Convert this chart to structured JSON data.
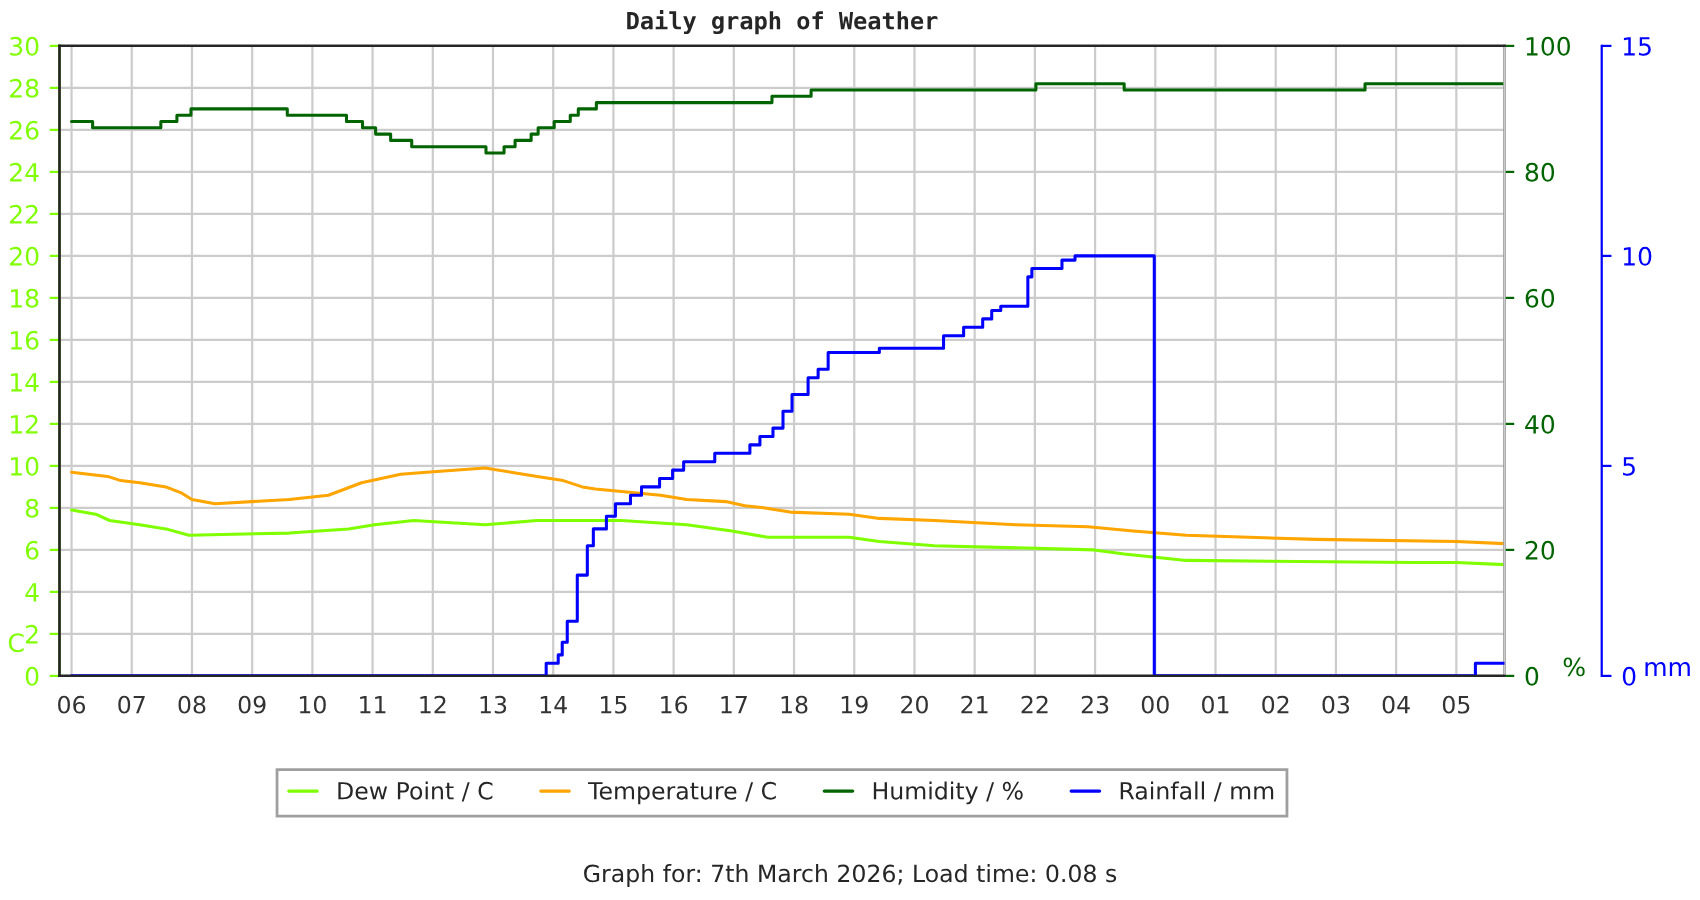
{
  "chart_data": {
    "type": "line",
    "title": "Daily graph of Weather",
    "ylabel": "C",
    "y2label": "%",
    "y3label": "mm",
    "xlim": [
      "2026-03-07T05:48",
      "2026-03-08T05:48"
    ],
    "xticks": [
      {
        "value": "2026-03-07T06:00",
        "label": "06"
      },
      {
        "value": "2026-03-07T07:00",
        "label": "07"
      },
      {
        "value": "2026-03-07T08:00",
        "label": "08"
      },
      {
        "value": "2026-03-07T09:00",
        "label": "09"
      },
      {
        "value": "2026-03-07T10:00",
        "label": "10"
      },
      {
        "value": "2026-03-07T11:00",
        "label": "11"
      },
      {
        "value": "2026-03-07T12:00",
        "label": "12"
      },
      {
        "value": "2026-03-07T13:00",
        "label": "13"
      },
      {
        "value": "2026-03-07T14:00",
        "label": "14"
      },
      {
        "value": "2026-03-07T15:00",
        "label": "15"
      },
      {
        "value": "2026-03-07T16:00",
        "label": "16"
      },
      {
        "value": "2026-03-07T17:00",
        "label": "17"
      },
      {
        "value": "2026-03-07T18:00",
        "label": "18"
      },
      {
        "value": "2026-03-07T19:00",
        "label": "19"
      },
      {
        "value": "2026-03-07T20:00",
        "label": "20"
      },
      {
        "value": "2026-03-07T21:00",
        "label": "21"
      },
      {
        "value": "2026-03-07T22:00",
        "label": "22"
      },
      {
        "value": "2026-03-07T23:00",
        "label": "23"
      },
      {
        "value": "2026-03-08T00:00",
        "label": "00"
      },
      {
        "value": "2026-03-08T01:00",
        "label": "01"
      },
      {
        "value": "2026-03-08T02:00",
        "label": "02"
      },
      {
        "value": "2026-03-08T03:00",
        "label": "03"
      },
      {
        "value": "2026-03-08T04:00",
        "label": "04"
      },
      {
        "value": "2026-03-08T05:00",
        "label": "05"
      }
    ],
    "ylim": [
      0,
      30
    ],
    "yticks": [
      0,
      2,
      4,
      6,
      8,
      10,
      12,
      14,
      16,
      18,
      20,
      22,
      24,
      26,
      28,
      30
    ],
    "y2lim": [
      0,
      100
    ],
    "y2ticks": [
      0,
      20,
      40,
      60,
      80,
      100
    ],
    "y3lim": [
      0,
      15
    ],
    "y3ticks": [
      0,
      5,
      10,
      15
    ],
    "grid": true,
    "legend": "bottom",
    "series": [
      {
        "name": "Dew Point / C",
        "color": "#7fff00",
        "x": [
          "2026-03-07T06:00",
          "2026-03-07T06:24",
          "2026-03-07T06:38",
          "2026-03-07T07:08",
          "2026-03-07T07:34",
          "2026-03-07T07:57",
          "2026-03-07T09:37",
          "2026-03-07T10:36",
          "2026-03-07T11:02",
          "2026-03-07T11:41",
          "2026-03-07T12:52",
          "2026-03-07T13:44",
          "2026-03-07T15:08",
          "2026-03-07T16:13",
          "2026-03-07T16:58",
          "2026-03-07T17:34",
          "2026-03-07T18:55",
          "2026-03-07T19:25",
          "2026-03-07T20:20",
          "2026-03-07T22:59",
          "2026-03-07T23:29",
          "2026-03-08T00:31",
          "2026-03-08T04:18",
          "2026-03-08T05:00",
          "2026-03-08T05:48"
        ],
        "values": [
          7.9,
          7.7,
          7.4,
          7.2,
          7.0,
          6.7,
          6.8,
          7.0,
          7.2,
          7.4,
          7.2,
          7.4,
          7.4,
          7.2,
          6.9,
          6.6,
          6.6,
          6.4,
          6.2,
          6.0,
          5.8,
          5.5,
          5.4,
          5.4,
          5.3
        ]
      },
      {
        "name": "Temperature / C",
        "color": "#ffa500",
        "x": [
          "2026-03-07T06:00",
          "2026-03-07T06:36",
          "2026-03-07T06:49",
          "2026-03-07T07:08",
          "2026-03-07T07:34",
          "2026-03-07T07:50",
          "2026-03-07T08:00",
          "2026-03-07T08:23",
          "2026-03-07T09:37",
          "2026-03-07T10:16",
          "2026-03-07T10:49",
          "2026-03-07T11:28",
          "2026-03-07T11:54",
          "2026-03-07T12:52",
          "2026-03-07T13:18",
          "2026-03-07T13:44",
          "2026-03-07T14:10",
          "2026-03-07T14:29",
          "2026-03-07T14:42",
          "2026-03-07T15:47",
          "2026-03-07T16:13",
          "2026-03-07T16:52",
          "2026-03-07T17:11",
          "2026-03-07T17:31",
          "2026-03-07T17:56",
          "2026-03-07T18:55",
          "2026-03-07T19:25",
          "2026-03-07T20:20",
          "2026-03-07T21:41",
          "2026-03-07T22:53",
          "2026-03-07T23:38",
          "2026-03-08T00:31",
          "2026-03-08T02:40",
          "2026-03-08T05:00",
          "2026-03-08T05:48"
        ],
        "values": [
          9.7,
          9.5,
          9.3,
          9.2,
          9.0,
          8.7,
          8.4,
          8.2,
          8.4,
          8.6,
          9.2,
          9.6,
          9.7,
          9.9,
          9.7,
          9.5,
          9.3,
          9.0,
          8.9,
          8.6,
          8.4,
          8.3,
          8.1,
          8.0,
          7.8,
          7.7,
          7.5,
          7.4,
          7.2,
          7.1,
          6.9,
          6.7,
          6.5,
          6.4,
          6.3
        ]
      },
      {
        "name": "Humidity / %",
        "type": "step",
        "axis": "y2",
        "color": "#006400",
        "x": [
          "2026-03-07T06:00",
          "2026-03-07T06:21",
          "2026-03-07T07:29",
          "2026-03-07T07:45",
          "2026-03-07T07:59",
          "2026-03-07T09:35",
          "2026-03-07T10:34",
          "2026-03-07T10:50",
          "2026-03-07T11:03",
          "2026-03-07T11:18",
          "2026-03-07T11:39",
          "2026-03-07T12:53",
          "2026-03-07T13:11",
          "2026-03-07T13:22",
          "2026-03-07T13:38",
          "2026-03-07T13:45",
          "2026-03-07T14:01",
          "2026-03-07T14:17",
          "2026-03-07T14:25",
          "2026-03-07T14:43",
          "2026-03-07T17:38",
          "2026-03-07T18:17",
          "2026-03-07T22:01",
          "2026-03-07T23:29",
          "2026-03-08T03:29",
          "2026-03-08T05:48"
        ],
        "values": [
          88,
          87,
          88,
          89,
          90,
          89,
          88,
          87,
          86,
          85,
          84,
          83,
          84,
          85,
          86,
          87,
          88,
          89,
          90,
          91,
          92,
          93,
          94,
          93,
          94,
          94
        ]
      },
      {
        "name": "Rainfall / mm",
        "type": "step",
        "axis": "y3",
        "color": "#0000ff",
        "x": [
          "2026-03-07T06:00",
          "2026-03-07T13:53",
          "2026-03-07T14:05",
          "2026-03-07T14:09",
          "2026-03-07T14:14",
          "2026-03-07T14:24",
          "2026-03-07T14:34",
          "2026-03-07T14:40",
          "2026-03-07T14:53",
          "2026-03-07T15:02",
          "2026-03-07T15:17",
          "2026-03-07T15:28",
          "2026-03-07T15:46",
          "2026-03-07T15:59",
          "2026-03-07T16:10",
          "2026-03-07T16:41",
          "2026-03-07T17:16",
          "2026-03-07T17:26",
          "2026-03-07T17:39",
          "2026-03-07T17:49",
          "2026-03-07T17:58",
          "2026-03-07T18:14",
          "2026-03-07T18:24",
          "2026-03-07T18:34",
          "2026-03-07T19:25",
          "2026-03-07T20:29",
          "2026-03-07T20:49",
          "2026-03-07T21:08",
          "2026-03-07T21:17",
          "2026-03-07T21:26",
          "2026-03-07T21:53",
          "2026-03-07T21:57",
          "2026-03-07T22:27",
          "2026-03-07T22:40",
          "2026-03-07T23:59",
          "2026-03-08T05:19",
          "2026-03-08T05:48"
        ],
        "values": [
          0,
          0.3,
          0.5,
          0.8,
          1.3,
          2.4,
          3.1,
          3.5,
          3.8,
          4.1,
          4.3,
          4.5,
          4.7,
          4.9,
          5.1,
          5.3,
          5.5,
          5.7,
          5.9,
          6.3,
          6.7,
          7.1,
          7.3,
          7.7,
          7.8,
          8.1,
          8.3,
          8.5,
          8.7,
          8.8,
          9.5,
          9.7,
          9.9,
          10.0,
          0,
          0.3,
          0.3
        ]
      }
    ],
    "annotations": [
      "Graph for: 7th March 2026; Load time: 0.08 s"
    ]
  }
}
